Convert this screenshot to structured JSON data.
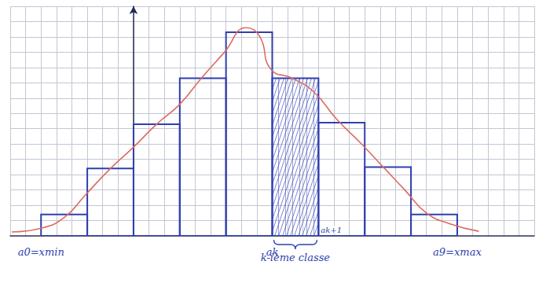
{
  "chart_data": {
    "type": "histogram",
    "bins": [
      -6,
      -3,
      0,
      3,
      6,
      9,
      12,
      15,
      18,
      21
    ],
    "values": [
      1.4,
      4.4,
      7.3,
      10.3,
      13.3,
      10.3,
      7.4,
      4.5,
      1.4
    ],
    "color": "#2f3fb0",
    "xlim": [
      -8,
      26
    ],
    "ylim": [
      0,
      15
    ],
    "xticks": [
      -8,
      -7,
      -6,
      -5,
      -4,
      -3,
      -2,
      -1,
      0,
      1,
      2,
      3,
      4,
      5,
      6,
      7,
      8,
      9,
      10,
      11,
      12,
      13,
      14,
      15,
      16,
      17,
      18,
      19,
      20,
      21,
      22,
      23,
      24,
      25,
      26
    ],
    "yticks": [
      0,
      1,
      2,
      3,
      4,
      5,
      6,
      7,
      8,
      9,
      10,
      11,
      12,
      13,
      14,
      15
    ],
    "grid": true,
    "tick_labels": false,
    "series": [
      {
        "type": "line",
        "color": "#e06a60",
        "line_style": "solid",
        "x": [
          -7.9,
          -6,
          -4.5,
          -3.1,
          -1.5,
          0,
          1.5,
          3,
          4.4,
          5.9,
          7.3,
          8.2,
          8.9,
          10.3,
          11.7,
          13.2,
          14.7,
          16.2,
          17.6,
          19,
          20.5,
          22.4
        ],
        "values": [
          0.26,
          0.5,
          1.2,
          2.7,
          4.4,
          5.8,
          7.3,
          8.6,
          10.3,
          12,
          13.6,
          13,
          10.9,
          10.3,
          9.4,
          7.6,
          6.1,
          4.5,
          3,
          1.5,
          0.8,
          0.3
        ]
      }
    ],
    "annotations": [
      {
        "text": "a0=xmin",
        "x": -6
      },
      {
        "text": "ak",
        "x": 9
      },
      {
        "text": "ak+1",
        "x": 12
      },
      {
        "text": "a9=xmax",
        "x": 21
      },
      {
        "text": "k-ième classe",
        "x": [
          9,
          12
        ]
      }
    ]
  }
}
